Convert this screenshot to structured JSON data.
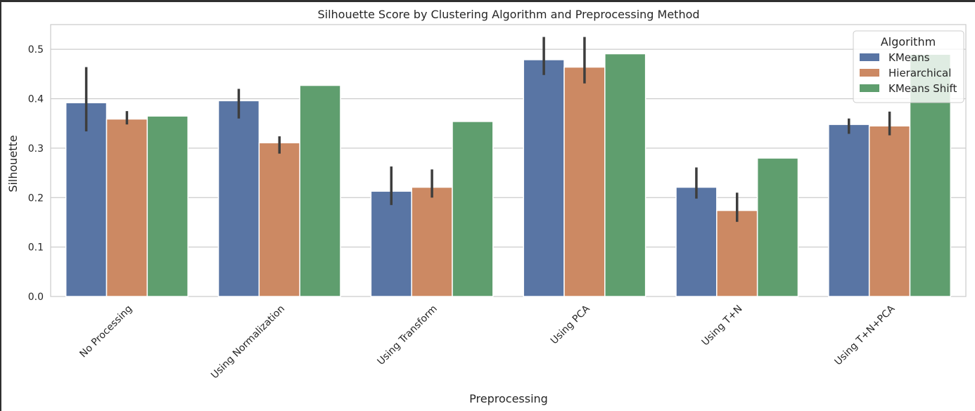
{
  "chart_data": {
    "type": "bar",
    "title": "Silhouette Score by Clustering Algorithm and Preprocessing Method",
    "xlabel": "Preprocessing",
    "ylabel": "Silhouette",
    "ylim": [
      0,
      0.55
    ],
    "yticks": [
      "0.0",
      "0.1",
      "0.2",
      "0.3",
      "0.4",
      "0.5"
    ],
    "grid": true,
    "categories": [
      "No Processing",
      "Using Normalization",
      "Using Transform",
      "Using PCA",
      "Using T+N",
      "Using T+N+PCA"
    ],
    "legend": {
      "title": "Algorithm",
      "placement": "top-right"
    },
    "series": [
      {
        "name": "KMeans",
        "color": "#5975a4",
        "values": [
          0.392,
          0.396,
          0.213,
          0.479,
          0.221,
          0.348
        ],
        "error_low": [
          0.334,
          0.36,
          0.185,
          0.448,
          0.198,
          0.329
        ],
        "error_high": [
          0.464,
          0.42,
          0.263,
          0.525,
          0.261,
          0.36
        ]
      },
      {
        "name": "Hierarchical",
        "color": "#cc8963",
        "values": [
          0.359,
          0.311,
          0.221,
          0.464,
          0.174,
          0.345
        ],
        "error_low": [
          0.348,
          0.289,
          0.2,
          0.431,
          0.151,
          0.326
        ],
        "error_high": [
          0.375,
          0.324,
          0.257,
          0.525,
          0.21,
          0.374
        ]
      },
      {
        "name": "KMeans Shift",
        "color": "#5f9e6e",
        "values": [
          0.365,
          0.427,
          0.354,
          0.491,
          0.28,
          0.49
        ]
      }
    ]
  }
}
